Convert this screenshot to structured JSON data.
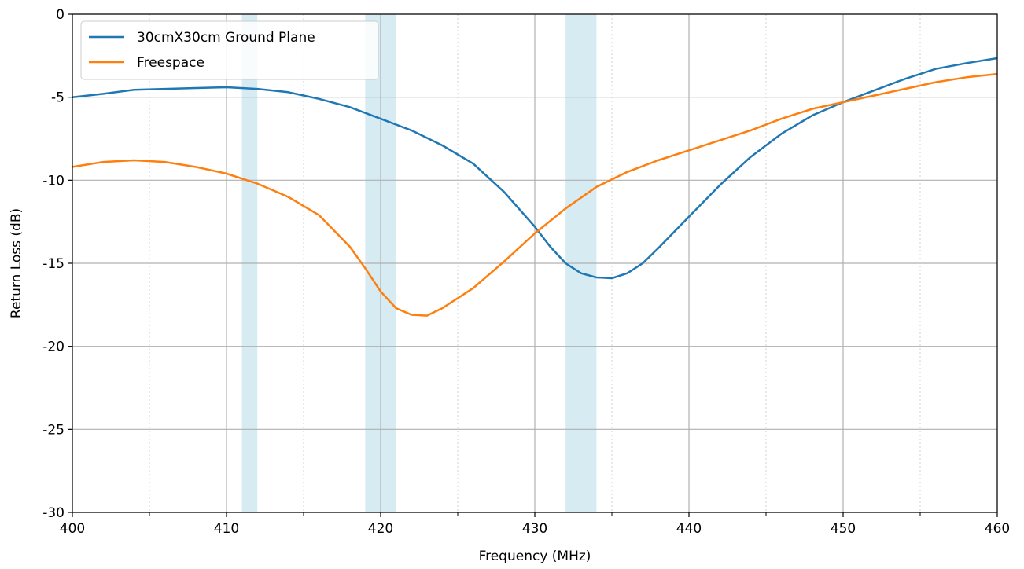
{
  "chart_data": {
    "type": "line",
    "title": "",
    "xlabel": "Frequency (MHz)",
    "ylabel": "Return Loss (dB)",
    "xlim": [
      400,
      460
    ],
    "ylim": [
      -30,
      0
    ],
    "xticks": [
      400,
      410,
      420,
      430,
      440,
      450,
      460
    ],
    "yticks": [
      0,
      -5,
      -10,
      -15,
      -20,
      -25,
      -30
    ],
    "xminor_ticks": [
      405,
      415,
      425,
      435,
      445,
      455
    ],
    "grid": true,
    "legend_position": "top-left",
    "shaded_bands": [
      {
        "x0": 411,
        "x1": 412,
        "color": "#add8e6"
      },
      {
        "x0": 419,
        "x1": 421,
        "color": "#add8e6"
      },
      {
        "x0": 432,
        "x1": 434,
        "color": "#add8e6"
      }
    ],
    "series": [
      {
        "name": "30cmX30cm Ground Plane",
        "color": "#1f77b4",
        "x": [
          400,
          402,
          404,
          406,
          408,
          410,
          412,
          414,
          416,
          418,
          420,
          422,
          424,
          426,
          428,
          430,
          431,
          432,
          433,
          434,
          435,
          436,
          437,
          438,
          440,
          442,
          444,
          446,
          448,
          450,
          452,
          454,
          456,
          458,
          460
        ],
        "y": [
          -5.0,
          -4.8,
          -4.55,
          -4.5,
          -4.45,
          -4.4,
          -4.5,
          -4.7,
          -5.1,
          -5.6,
          -6.3,
          -7.0,
          -7.9,
          -9.0,
          -10.7,
          -12.8,
          -14.0,
          -15.0,
          -15.6,
          -15.85,
          -15.9,
          -15.6,
          -15.0,
          -14.1,
          -12.2,
          -10.3,
          -8.6,
          -7.2,
          -6.1,
          -5.3,
          -4.6,
          -3.9,
          -3.3,
          -2.95,
          -2.65
        ]
      },
      {
        "name": "Freespace",
        "color": "#ff7f0e",
        "x": [
          400,
          402,
          404,
          406,
          408,
          410,
          412,
          414,
          416,
          418,
          419,
          420,
          421,
          422,
          423,
          424,
          426,
          428,
          430,
          432,
          434,
          436,
          438,
          440,
          442,
          444,
          446,
          448,
          450,
          452,
          454,
          456,
          458,
          460
        ],
        "y": [
          -9.2,
          -8.9,
          -8.8,
          -8.9,
          -9.2,
          -9.6,
          -10.2,
          -11.0,
          -12.1,
          -14.0,
          -15.3,
          -16.7,
          -17.7,
          -18.1,
          -18.15,
          -17.7,
          -16.5,
          -14.9,
          -13.2,
          -11.7,
          -10.4,
          -9.5,
          -8.8,
          -8.2,
          -7.6,
          -7.0,
          -6.3,
          -5.7,
          -5.3,
          -4.9,
          -4.5,
          -4.1,
          -3.8,
          -3.6
        ]
      }
    ]
  }
}
